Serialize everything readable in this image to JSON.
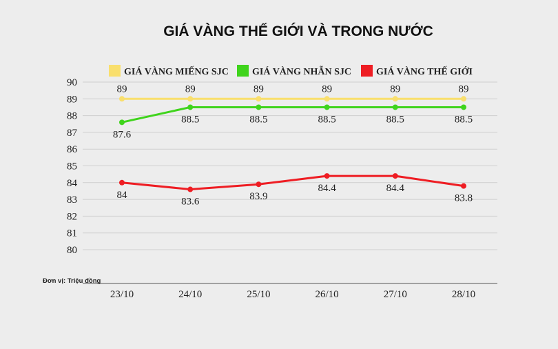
{
  "chart_data": {
    "type": "line",
    "title": "GIÁ VÀNG THẾ GIỚI VÀ TRONG NƯỚC",
    "unit_note": "Đơn vị: Triệu đồng",
    "categories": [
      "23/10",
      "24/10",
      "25/10",
      "26/10",
      "27/10",
      "28/10"
    ],
    "y_ticks": [
      "80",
      "81",
      "82",
      "83",
      "84",
      "85",
      "86",
      "87",
      "88",
      "89",
      "90"
    ],
    "ylim": [
      80,
      90
    ],
    "grid": true,
    "legend_position": "top",
    "series": [
      {
        "name": "GIÁ VÀNG MIẾNG SJC",
        "color": "#f9df6d",
        "values": [
          89,
          89,
          89,
          89,
          89,
          89
        ],
        "labels": [
          "89",
          "89",
          "89",
          "89",
          "89",
          "89"
        ],
        "label_pos": "above"
      },
      {
        "name": "GIÁ VÀNG NHẪN SJC",
        "color": "#3fd41c",
        "values": [
          87.6,
          88.5,
          88.5,
          88.5,
          88.5,
          88.5
        ],
        "labels": [
          "87.6",
          "88.5",
          "88.5",
          "88.5",
          "88.5",
          "88.5"
        ],
        "label_pos": "below"
      },
      {
        "name": "GIÁ VÀNG THẾ GIỚI",
        "color": "#ee1d23",
        "values": [
          84,
          83.6,
          83.9,
          84.4,
          84.4,
          83.8
        ],
        "labels": [
          "84",
          "83.6",
          "83.9",
          "84.4",
          "84.4",
          "83.8"
        ],
        "label_pos": "below"
      }
    ]
  }
}
